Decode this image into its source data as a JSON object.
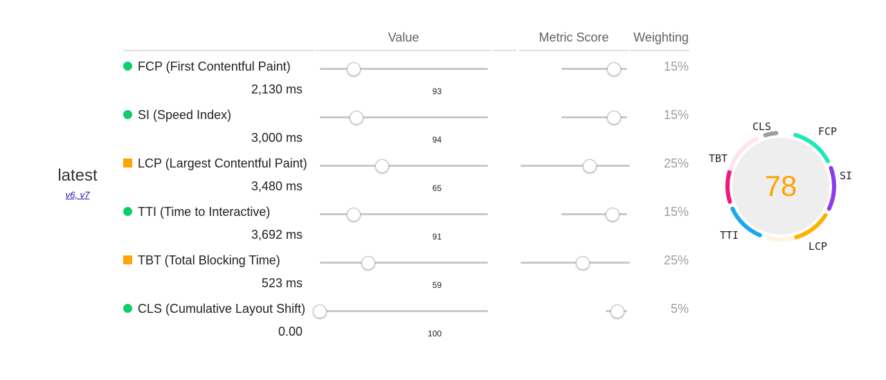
{
  "version": {
    "label": "latest",
    "link": "v6, v7"
  },
  "headers": {
    "value": "Value",
    "metric_score": "Metric Score",
    "weighting": "Weighting"
  },
  "metrics": [
    {
      "name": "FCP (First Contentful Paint)",
      "status": "pass",
      "value": "2,130 ms",
      "score": "93",
      "weight": "15%",
      "value_slider": 0.2,
      "score_slider": 0.8
    },
    {
      "name": "SI (Speed Index)",
      "status": "pass",
      "value": "3,000 ms",
      "score": "94",
      "weight": "15%",
      "value_slider": 0.22,
      "score_slider": 0.8
    },
    {
      "name": "LCP (Largest Contentful Paint)",
      "status": "average",
      "value": "3,480 ms",
      "score": "65",
      "weight": "25%",
      "value_slider": 0.37,
      "score_slider": 0.63
    },
    {
      "name": "TTI (Time to Interactive)",
      "status": "pass",
      "value": "3,692 ms",
      "score": "91",
      "weight": "15%",
      "value_slider": 0.2,
      "score_slider": 0.78
    },
    {
      "name": "TBT (Total Blocking Time)",
      "status": "average",
      "value": "523 ms",
      "score": "59",
      "weight": "25%",
      "value_slider": 0.29,
      "score_slider": 0.57
    },
    {
      "name": "CLS (Cumulative Layout Shift)",
      "status": "pass",
      "value": "0.00",
      "score": "100",
      "weight": "5%",
      "value_slider": 0.0,
      "score_slider": 0.56
    }
  ],
  "gauge": {
    "score": "78",
    "score_color": "#ffa400",
    "segments": [
      {
        "label": "FCP",
        "color": "#1de9b6"
      },
      {
        "label": "SI",
        "color": "#8c3cf0"
      },
      {
        "label": "LCP",
        "color": "#ffb300"
      },
      {
        "label": "TTI",
        "color": "#1ea7f0"
      },
      {
        "label": "TBT",
        "color": "#f0187a"
      },
      {
        "label": "CLS",
        "color": "#9e9e9e"
      }
    ]
  }
}
